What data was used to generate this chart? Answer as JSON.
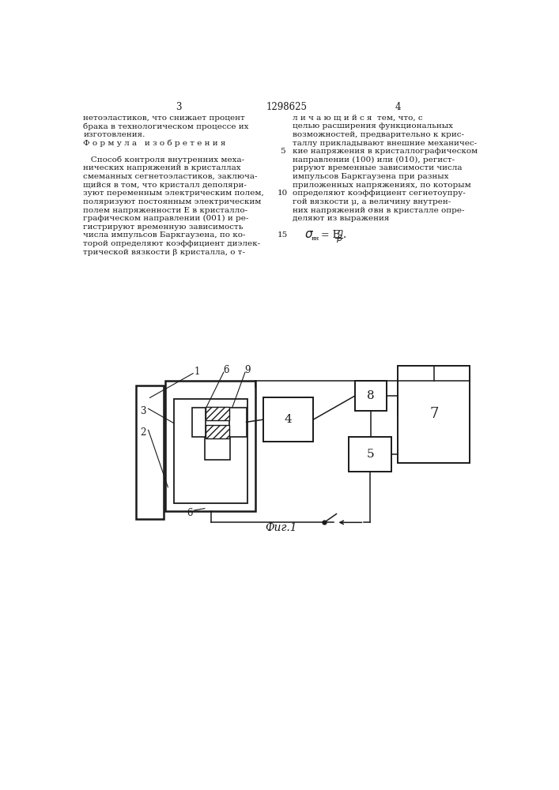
{
  "page_color": "#ffffff",
  "text_color": "#1a1a1a",
  "header_page_num_left": "3",
  "header_patent_num": "1298625",
  "header_page_num_right": "4",
  "col_left_lines": [
    "нетоэластиков, что снижает процент",
    "брака в технологическом процессе их",
    "изготовления.",
    "Ф о р м у л а   и з о б р е т е н и я",
    "",
    "   Способ контроля внутренних меха-",
    "нических напряжений в кристаллах",
    "смеманных сегнетоэластиков, заключа-",
    "щийся в том, что кристалл деполяри-",
    "зуют переменным электрическим полем,",
    "поляризуют постоянным электрическим",
    "полем напряженности Е в кристалло-",
    "графическом направлении (001) и ре-",
    "гистрируют временную зависимость",
    "числа импульсов Баркгаузена, по ко-",
    "торой определяют коэффициент диэлек-",
    "трической вязкости β кристалла, о т-"
  ],
  "col_right_lines": [
    "л и ч а ю щ и й с я  тем, что, с",
    "целью расширения функциональных",
    "возможностей, предварительно к крис-",
    "таллу прикладывают внешние механичес-",
    "кие напряжения в кристаллографическом",
    "направлении (100) или (010), регист-",
    "рируют временные зависимости числа",
    "импульсов Баркгаузена при разных",
    "приложенных напряжениях, по которым",
    "определяют коэффициент сегнетоупру-",
    "гой вязкости μ, а величину внутрен-",
    "них напряжений σвн в кристалле опре-",
    "деляют из выражения"
  ],
  "line_numbers_rows": [
    4,
    9,
    14
  ],
  "line_numbers_vals": [
    "5",
    "10",
    "15"
  ],
  "diagram_caption": "Фиг.1"
}
